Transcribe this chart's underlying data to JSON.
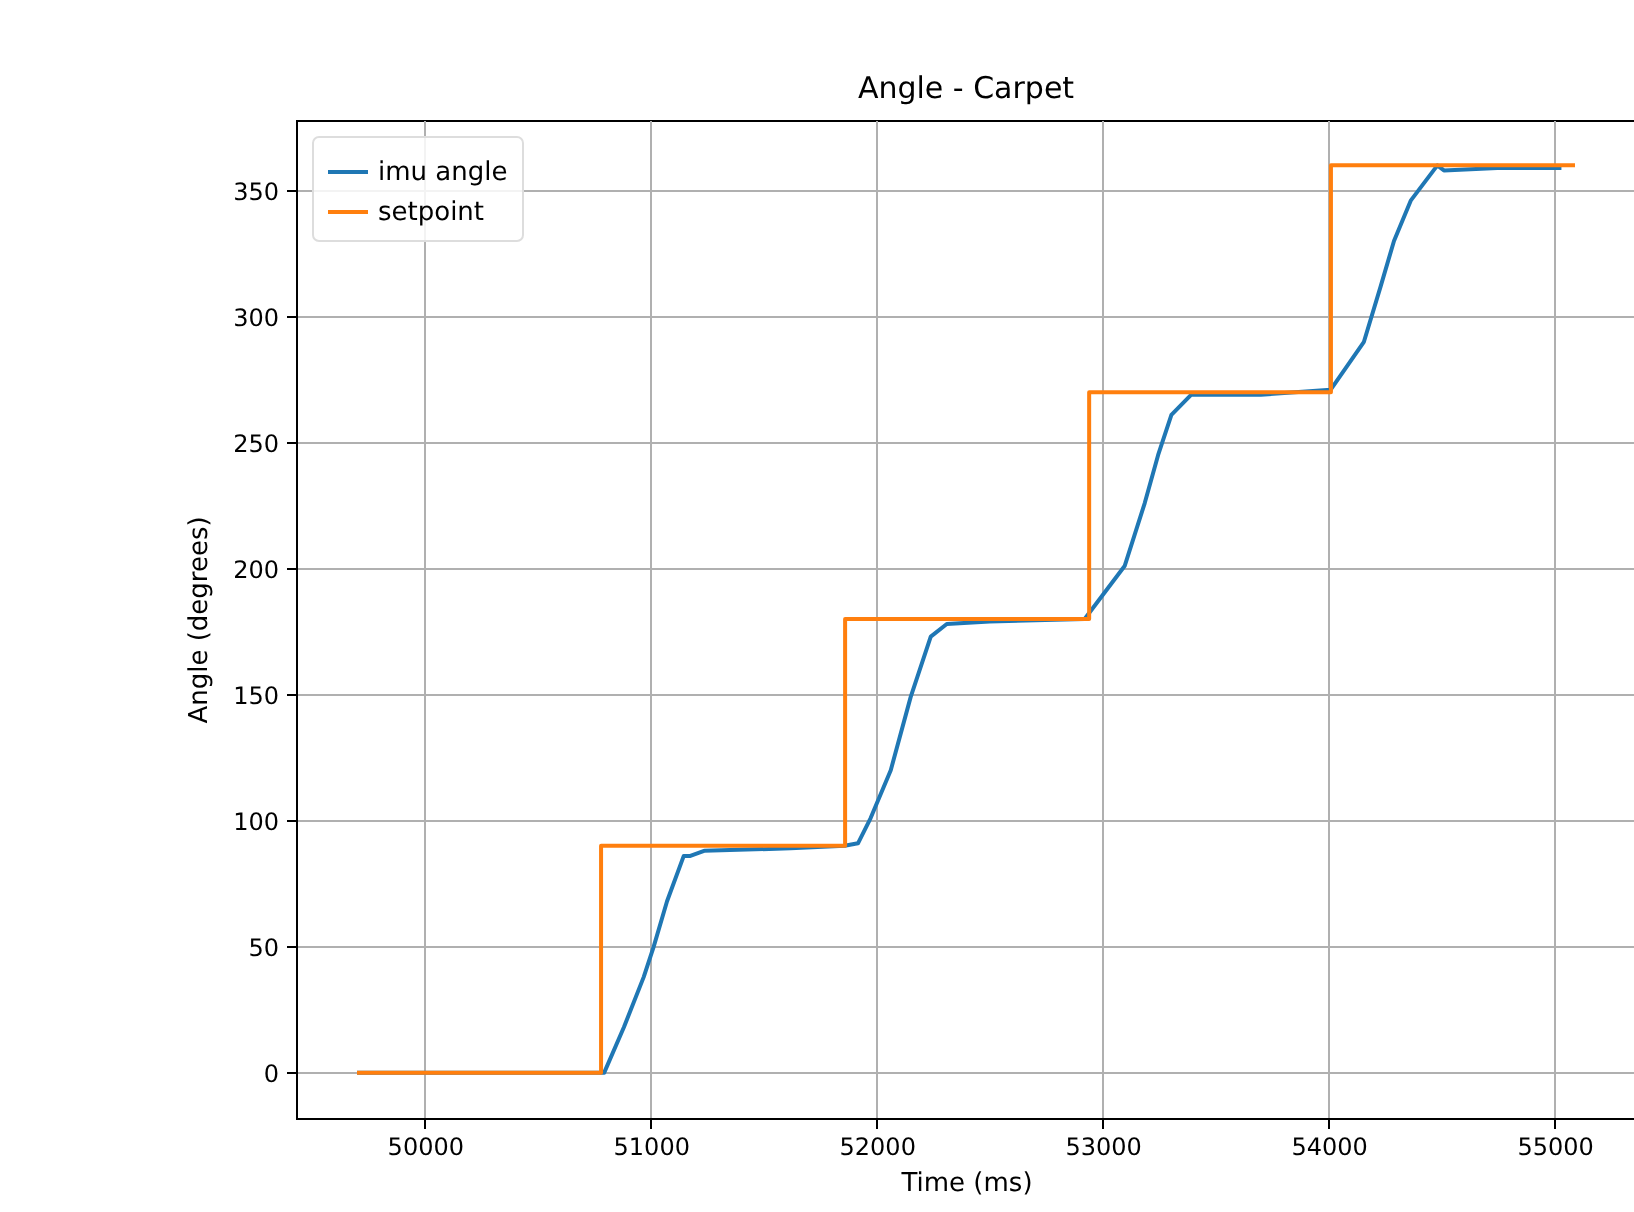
{
  "chart_data": {
    "type": "line",
    "title": "Angle - Carpet",
    "xlabel": "Time (ms)",
    "ylabel": "Angle (degrees)",
    "xlim": [
      49430,
      55360
    ],
    "xticks": [
      50000,
      51000,
      52000,
      53000,
      54000,
      55000
    ],
    "ylim": [
      -18,
      378
    ],
    "yticks": [
      0,
      50,
      100,
      150,
      200,
      250,
      300,
      350
    ],
    "grid": true,
    "legend": "top left",
    "line_style": "solid",
    "marker": "none",
    "series": [
      {
        "name": "imu angle",
        "color": "#1f77b4",
        "x": [
          49700,
          50794,
          50881,
          50969,
          51013,
          51072,
          51146,
          51175,
          51236,
          51619,
          51858,
          51917,
          51973,
          52062,
          52150,
          52239,
          52310,
          52500,
          52920,
          53097,
          53186,
          53245,
          53304,
          53392,
          53700,
          54009,
          54156,
          54230,
          54289,
          54363,
          54481,
          54510,
          54746,
          55030
        ],
        "values": [
          0,
          0,
          18,
          38,
          50,
          68,
          86,
          86,
          88,
          89,
          90,
          91,
          101,
          120,
          149,
          173,
          178,
          179,
          180,
          201,
          226,
          245,
          261,
          269,
          269,
          271,
          290,
          312,
          330,
          346,
          360,
          358,
          359,
          359
        ]
      },
      {
        "name": "setpoint",
        "color": "#ff7f0e",
        "x": [
          49700,
          50780,
          50780,
          51860,
          51860,
          52940,
          52940,
          54010,
          54010,
          55090
        ],
        "values": [
          0,
          0,
          90,
          90,
          180,
          180,
          270,
          270,
          360,
          360
        ]
      }
    ]
  }
}
